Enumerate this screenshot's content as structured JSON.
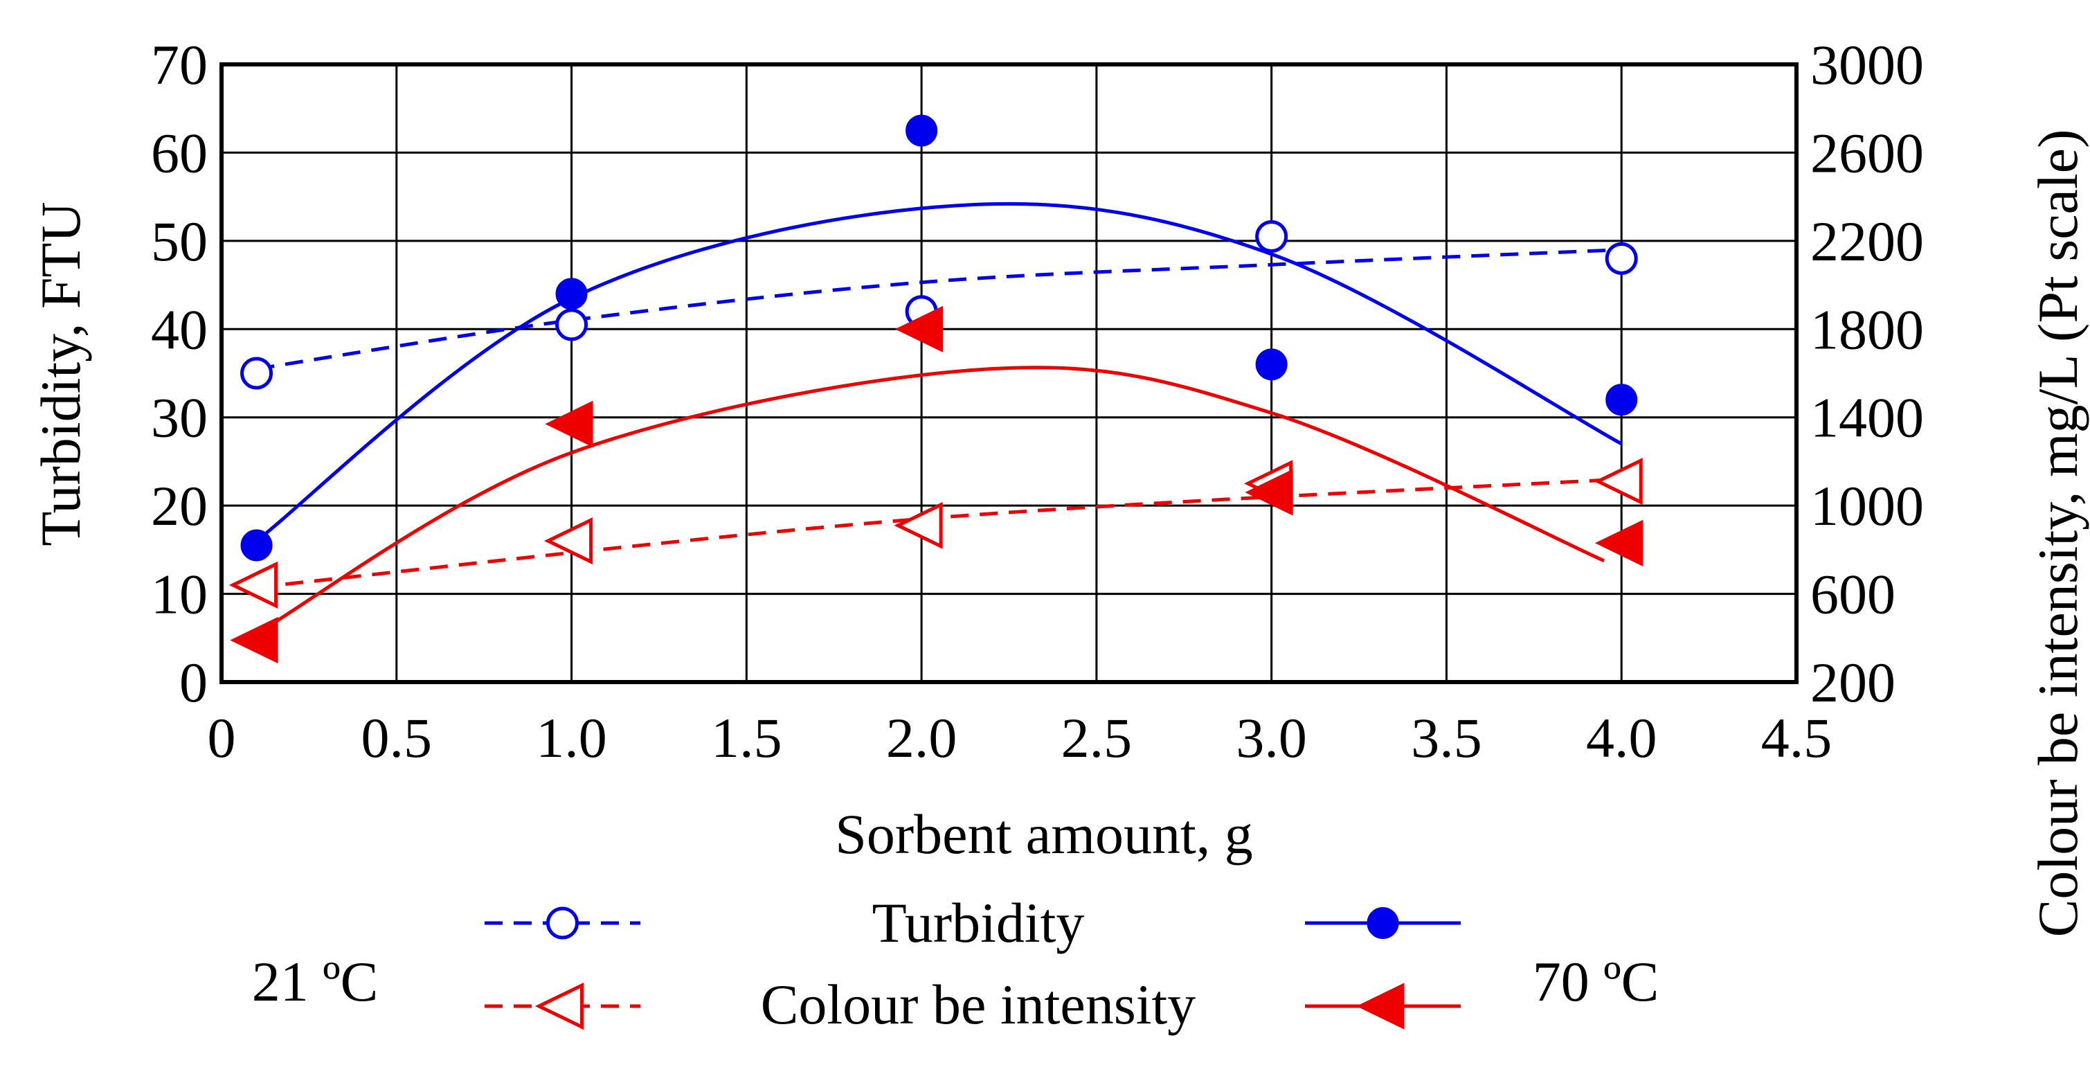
{
  "chart_data": {
    "type": "scatter",
    "x_axis": {
      "label": "Sorbent amount, g",
      "min": 0,
      "max": 4.5,
      "ticks": [
        0,
        0.5,
        1.0,
        1.5,
        2.0,
        2.5,
        3.0,
        3.5,
        4.0,
        4.5
      ],
      "tick_labels": [
        "0",
        "0.5",
        "1.0",
        "1.5",
        "2.0",
        "2.5",
        "3.0",
        "3.5",
        "4.0",
        "4.5"
      ]
    },
    "y_left": {
      "label": "Turbidity, FTU",
      "min": 0,
      "max": 70,
      "ticks": [
        0,
        10,
        20,
        30,
        40,
        50,
        60,
        70
      ],
      "tick_labels": [
        "0",
        "10",
        "20",
        "30",
        "40",
        "50",
        "60",
        "70"
      ]
    },
    "y_right": {
      "label": "Colour be intensity, mg/L (Pt scale)",
      "min": 200,
      "max": 3000,
      "ticks": [
        200,
        600,
        1000,
        1400,
        1800,
        2200,
        2600,
        3000
      ],
      "tick_labels": [
        "200",
        "600",
        "1000",
        "1400",
        "1800",
        "2200",
        "2600",
        "3000"
      ]
    },
    "grid": true,
    "series": [
      {
        "name": "Turbidity 21 °C",
        "axis": "left",
        "marker": "open-circle",
        "color": "#0000EE",
        "line": "dashed",
        "x": [
          0.1,
          1.0,
          2.0,
          3.0,
          4.0
        ],
        "y": [
          35,
          40.5,
          42,
          50.5,
          48
        ],
        "trend": {
          "from": 0.1,
          "to": 4.0,
          "points": [
            [
              0.1,
              35.5
            ],
            [
              1.0,
              41
            ],
            [
              2.0,
              45.3
            ],
            [
              3.0,
              47.3
            ],
            [
              4.0,
              49
            ]
          ]
        }
      },
      {
        "name": "Turbidity 70 °C",
        "axis": "left",
        "marker": "filled-circle",
        "color": "#0000EE",
        "line": "solid",
        "x": [
          0.1,
          1.0,
          2.0,
          3.0,
          4.0
        ],
        "y": [
          15.5,
          44,
          62.5,
          36,
          32
        ],
        "trend": {
          "from": 0.1,
          "to": 4.0,
          "points": [
            [
              0.1,
              16
            ],
            [
              1.0,
              43.5
            ],
            [
              2.1,
              54
            ],
            [
              3.0,
              48.5
            ],
            [
              4.0,
              27
            ]
          ]
        }
      },
      {
        "name": "Colour be intensity 21 °C",
        "axis": "right",
        "marker": "open-triangle-left",
        "color": "#EE0000",
        "line": "dashed",
        "x": [
          0.1,
          1.0,
          2.0,
          3.0,
          4.0
        ],
        "y": [
          640,
          840,
          910,
          1100,
          1110
        ],
        "trend": {
          "from": 0.1,
          "to": 4.0,
          "points": [
            [
              0.1,
              630
            ],
            [
              2.0,
              940
            ],
            [
              4.0,
              1120
            ]
          ]
        }
      },
      {
        "name": "Colour be intensity 70 °C",
        "axis": "right",
        "marker": "filled-triangle-left",
        "color": "#EE0000",
        "line": "solid",
        "x": [
          0.1,
          1.0,
          2.0,
          3.0,
          4.0
        ],
        "y": [
          390,
          1370,
          1800,
          1060,
          830
        ],
        "trend": {
          "from": 0.1,
          "to": 3.95,
          "points": [
            [
              0.1,
              420
            ],
            [
              1.0,
              1240
            ],
            [
              2.2,
              1620
            ],
            [
              3.0,
              1420
            ],
            [
              3.95,
              750
            ]
          ]
        }
      }
    ],
    "legend": {
      "placement": "bottom",
      "row_labels": [
        "Turbidity",
        "Colour be intensity"
      ],
      "left_label": "21 ºC",
      "right_label": "70 ºC"
    }
  }
}
